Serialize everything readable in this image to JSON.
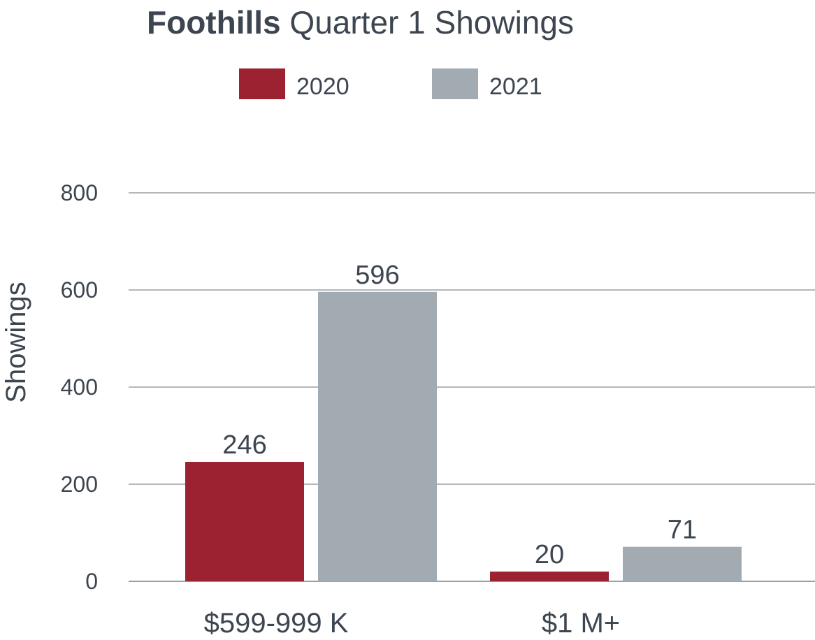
{
  "chart_data": {
    "type": "bar",
    "title_bold": "Foothills",
    "title_rest": " Quarter 1 Showings",
    "title": "Foothills Quarter 1 Showings",
    "xlabel": "",
    "ylabel": "Showings",
    "ylim": [
      0,
      800
    ],
    "yticks": [
      "0",
      "200",
      "400",
      "600",
      "800"
    ],
    "grid": true,
    "legend_position": "top-center",
    "categories": [
      "$599-999 K",
      "$1 M+"
    ],
    "series": [
      {
        "name": "2020",
        "color": "#9c2231",
        "values": [
          246,
          20
        ]
      },
      {
        "name": "2021",
        "color": "#a2abb1",
        "values": [
          596,
          71
        ]
      }
    ]
  }
}
